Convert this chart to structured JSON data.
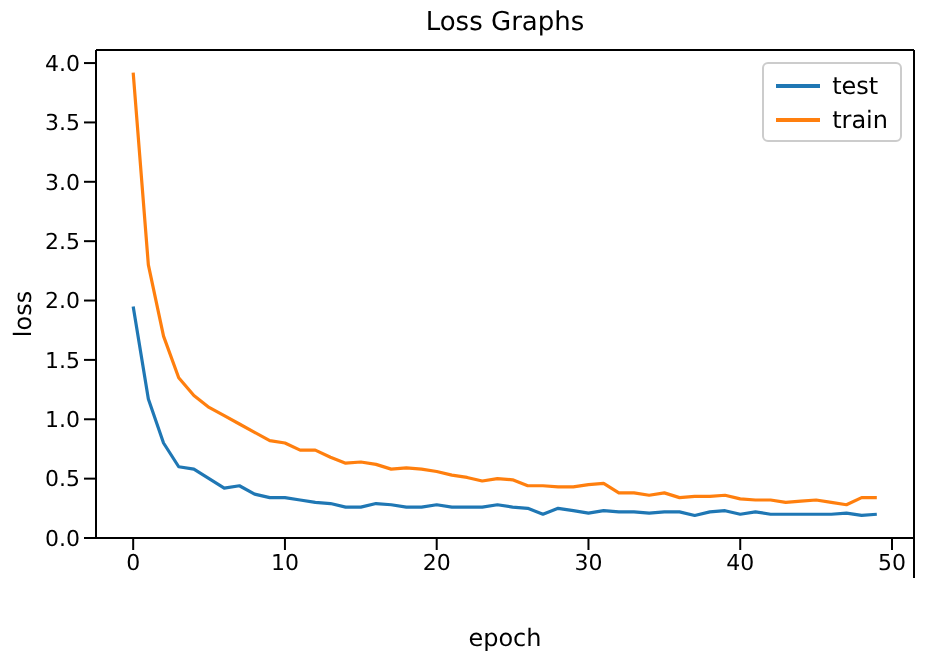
{
  "chart_data": {
    "type": "line",
    "title": "Loss Graphs",
    "xlabel": "epoch",
    "ylabel": "loss",
    "x": [
      0,
      1,
      2,
      3,
      4,
      5,
      6,
      7,
      8,
      9,
      10,
      11,
      12,
      13,
      14,
      15,
      16,
      17,
      18,
      19,
      20,
      21,
      22,
      23,
      24,
      25,
      26,
      27,
      28,
      29,
      30,
      31,
      32,
      33,
      34,
      35,
      36,
      37,
      38,
      39,
      40,
      41,
      42,
      43,
      44,
      45,
      46,
      47,
      48,
      49
    ],
    "series": [
      {
        "name": "test",
        "color": "#1f77b4",
        "values": [
          1.95,
          1.17,
          0.8,
          0.6,
          0.58,
          0.5,
          0.42,
          0.44,
          0.37,
          0.34,
          0.34,
          0.32,
          0.3,
          0.29,
          0.26,
          0.26,
          0.29,
          0.28,
          0.26,
          0.26,
          0.28,
          0.26,
          0.26,
          0.26,
          0.28,
          0.26,
          0.25,
          0.2,
          0.25,
          0.23,
          0.21,
          0.23,
          0.22,
          0.22,
          0.21,
          0.22,
          0.22,
          0.19,
          0.22,
          0.23,
          0.2,
          0.22,
          0.2,
          0.2,
          0.2,
          0.2,
          0.2,
          0.21,
          0.19,
          0.2
        ]
      },
      {
        "name": "train",
        "color": "#ff7f0e",
        "values": [
          3.92,
          2.3,
          1.7,
          1.35,
          1.2,
          1.1,
          1.03,
          0.96,
          0.89,
          0.82,
          0.8,
          0.74,
          0.74,
          0.68,
          0.63,
          0.64,
          0.62,
          0.58,
          0.59,
          0.58,
          0.56,
          0.53,
          0.51,
          0.48,
          0.5,
          0.49,
          0.44,
          0.44,
          0.43,
          0.43,
          0.45,
          0.46,
          0.38,
          0.38,
          0.36,
          0.38,
          0.34,
          0.35,
          0.35,
          0.36,
          0.33,
          0.32,
          0.32,
          0.3,
          0.31,
          0.32,
          0.3,
          0.28,
          0.34,
          0.34
        ]
      }
    ],
    "xlim": [
      -2.45,
      51.45
    ],
    "xticks": [
      0,
      10,
      20,
      30,
      40,
      50
    ],
    "ylim": [
      0,
      4.11
    ],
    "yticks": [
      {
        "value": 0,
        "label": "0.0"
      },
      {
        "value": 0.5,
        "label": "0.5"
      },
      {
        "value": 1,
        "label": "1.0"
      },
      {
        "value": 1.5,
        "label": "1.5"
      },
      {
        "value": 2,
        "label": "2.0"
      },
      {
        "value": 2.5,
        "label": "2.5"
      },
      {
        "value": 3,
        "label": "3.0"
      },
      {
        "value": 3.5,
        "label": "3.5"
      },
      {
        "value": 4,
        "label": "4.0"
      }
    ],
    "grid": false,
    "legend": "top right",
    "marker": "none",
    "line_style": "solid"
  }
}
